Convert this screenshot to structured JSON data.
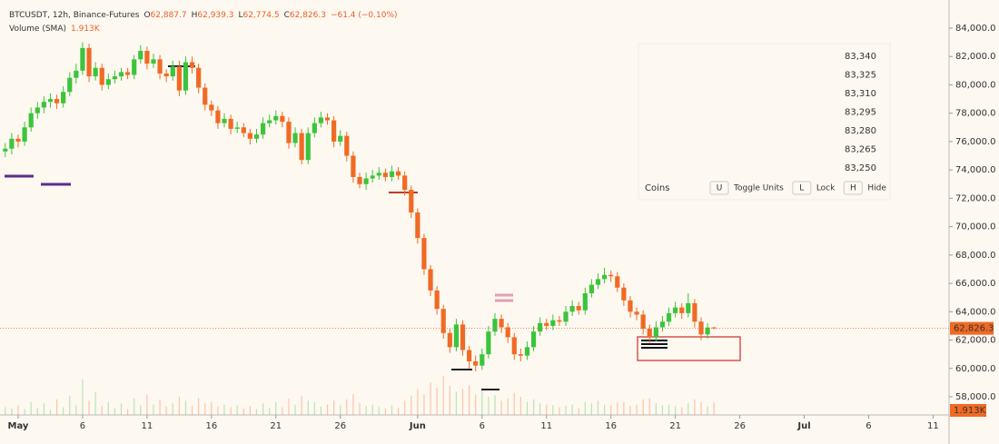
{
  "chart_data": {
    "type": "candlestick",
    "symbol": "BTCUSDT, 12h, Binance-Futures",
    "quote": [
      {
        "letter": "O",
        "text": "62,887.7"
      },
      {
        "letter": "H",
        "text": "62,939.3"
      },
      {
        "letter": "L",
        "text": "62,774.5"
      },
      {
        "letter": "C",
        "text": "62,826.3"
      }
    ],
    "change": "−61.4 (−0.10%)",
    "volume_title": "Volume (SMA)",
    "volume_value": "1.913K",
    "last_price_label": "62,826.3",
    "up_color": "#3cc43c",
    "down_color": "#f06a24",
    "xlim": [
      -1.41,
      72.24
    ],
    "xticks": [
      {
        "value": 0,
        "label": "May"
      },
      {
        "value": 5,
        "label": "6"
      },
      {
        "value": 10,
        "label": "11"
      },
      {
        "value": 15,
        "label": "16"
      },
      {
        "value": 20,
        "label": "21"
      },
      {
        "value": 25,
        "label": "26"
      },
      {
        "value": 31,
        "label": "Jun"
      },
      {
        "value": 36,
        "label": "6"
      },
      {
        "value": 41,
        "label": "11"
      },
      {
        "value": 46,
        "label": "16"
      },
      {
        "value": 51,
        "label": "21"
      },
      {
        "value": 56,
        "label": "26"
      },
      {
        "value": 61,
        "label": "Jul"
      },
      {
        "value": 66,
        "label": "6"
      },
      {
        "value": 71,
        "label": "11"
      }
    ],
    "ylim": [
      56720,
      85985
    ],
    "yticks": [
      {
        "value": 58000,
        "label": "58,000.0"
      },
      {
        "value": 60000,
        "label": "60,000.0"
      },
      {
        "value": 62000,
        "label": "62,000.0"
      },
      {
        "value": 64000,
        "label": "64,000.0"
      },
      {
        "value": 66000,
        "label": "66,000.0"
      },
      {
        "value": 68000,
        "label": "68,000.0"
      },
      {
        "value": 70000,
        "label": "70,000.0"
      },
      {
        "value": 72000,
        "label": "72,000.0"
      },
      {
        "value": 74000,
        "label": "74,000.0"
      },
      {
        "value": 76000,
        "label": "76,000.0"
      },
      {
        "value": 78000,
        "label": "78,000.0"
      },
      {
        "value": 80000,
        "label": "80,000.0"
      },
      {
        "value": 82000,
        "label": "82,000.0"
      },
      {
        "value": 84000,
        "label": "84,000.0"
      }
    ],
    "vlim": [
      0,
      8
    ],
    "x": [
      -1,
      -0.5,
      0,
      0.5,
      1,
      1.5,
      2,
      2.5,
      3,
      3.5,
      4,
      4.5,
      5,
      5.5,
      6,
      6.5,
      7,
      7.5,
      8,
      8.5,
      9,
      9.5,
      10,
      10.5,
      11,
      11.5,
      12,
      12.5,
      13,
      13.5,
      14,
      14.5,
      15,
      15.5,
      16,
      16.5,
      17,
      17.5,
      18,
      18.5,
      19,
      19.5,
      20,
      20.5,
      21,
      21.5,
      22,
      22.5,
      23,
      23.5,
      24,
      24.5,
      25,
      25.5,
      26,
      26.5,
      27,
      27.5,
      28,
      28.5,
      29,
      29.5,
      30,
      30.5,
      31,
      31.5,
      32,
      32.5,
      33,
      33.5,
      34,
      34.5,
      35,
      35.5,
      36,
      36.5,
      37,
      37.5,
      38,
      38.5,
      39,
      39.5,
      40,
      40.5,
      41,
      41.5,
      42,
      42.5,
      43,
      43.5,
      44,
      44.5,
      45,
      45.5,
      46,
      46.5,
      47,
      47.5,
      48,
      48.5,
      49,
      49.5,
      50,
      50.5,
      51,
      51.5,
      52,
      52.5,
      53,
      53.5,
      54
    ],
    "open": [
      75300,
      75500,
      76200,
      76000,
      77000,
      78000,
      78400,
      78800,
      79000,
      78700,
      79500,
      80500,
      81000,
      82600,
      80600,
      81200,
      80000,
      80400,
      80600,
      80900,
      80700,
      81800,
      82400,
      81500,
      81800,
      80800,
      80600,
      81300,
      79600,
      81600,
      81200,
      79800,
      78600,
      78200,
      77300,
      77600,
      76900,
      77000,
      76600,
      76200,
      76500,
      77300,
      77500,
      77800,
      77400,
      75900,
      76600,
      74700,
      76600,
      77300,
      77700,
      77500,
      76000,
      76400,
      75000,
      73500,
      73000,
      73400,
      73600,
      73800,
      73500,
      73900,
      73600,
      72600,
      71000,
      69200,
      67000,
      65500,
      64200,
      62500,
      61500,
      63100,
      61300,
      60500,
      60200,
      61000,
      62600,
      63500,
      62900,
      62200,
      61000,
      60900,
      61500,
      62600,
      63200,
      63000,
      63400,
      63300,
      64000,
      64400,
      64100,
      65300,
      65900,
      66300,
      66600,
      66500,
      65700,
      64800,
      64000,
      63800,
      62800,
      62200,
      62900,
      63300,
      63900,
      64300,
      63900,
      64600,
      63300,
      62400,
      62887.7
    ],
    "high": [
      75900,
      76600,
      76500,
      77400,
      78400,
      78800,
      79200,
      79400,
      79300,
      79900,
      80900,
      81500,
      83000,
      82900,
      81600,
      81500,
      80800,
      81000,
      81200,
      81200,
      82100,
      82800,
      82700,
      82200,
      82100,
      81100,
      81700,
      81700,
      82000,
      82000,
      81500,
      80100,
      78900,
      78500,
      78000,
      77900,
      77400,
      77300,
      76900,
      76900,
      77700,
      77900,
      78200,
      78100,
      77700,
      77000,
      76900,
      77000,
      77700,
      78100,
      78000,
      77800,
      76800,
      76700,
      75300,
      73800,
      73800,
      74000,
      74200,
      74100,
      74300,
      74200,
      73900,
      72900,
      71300,
      69500,
      67300,
      65800,
      64500,
      62800,
      63500,
      63400,
      61600,
      60900,
      61400,
      63000,
      63900,
      63800,
      63200,
      62500,
      61400,
      61900,
      63000,
      63600,
      63500,
      63800,
      63700,
      64400,
      64800,
      64700,
      65700,
      66300,
      66700,
      67100,
      66900,
      66800,
      66000,
      65100,
      64300,
      64100,
      63100,
      63300,
      63700,
      64300,
      64700,
      64600,
      65300,
      64900,
      63600,
      63200,
      62939.3
    ],
    "low": [
      74900,
      75100,
      75600,
      75700,
      76700,
      77600,
      78000,
      78400,
      78300,
      78400,
      79200,
      80100,
      80700,
      80200,
      80300,
      79600,
      79700,
      80100,
      80300,
      80400,
      80400,
      81500,
      81100,
      81200,
      80400,
      80200,
      80300,
      79200,
      79300,
      80800,
      79400,
      78200,
      77800,
      76900,
      77000,
      76500,
      76600,
      76300,
      75800,
      75900,
      76200,
      77000,
      77200,
      77000,
      75500,
      75600,
      74400,
      74400,
      76300,
      77000,
      77200,
      75600,
      75700,
      74600,
      73100,
      72700,
      72600,
      73100,
      73300,
      73200,
      73200,
      73300,
      72200,
      70600,
      68800,
      66600,
      65100,
      63800,
      62100,
      61100,
      61200,
      60900,
      60000,
      59800,
      59900,
      60700,
      62300,
      62500,
      61800,
      60600,
      60500,
      60600,
      61200,
      62300,
      62700,
      62700,
      63000,
      63000,
      63700,
      63800,
      63800,
      65000,
      65600,
      66000,
      66100,
      65400,
      64400,
      63600,
      63400,
      62400,
      61800,
      61900,
      62600,
      63000,
      63600,
      63500,
      63600,
      62900,
      62000,
      62100,
      62774.5
    ],
    "close": [
      75500,
      76200,
      76000,
      77000,
      78000,
      78400,
      78800,
      79000,
      78700,
      79500,
      80500,
      81000,
      82600,
      80600,
      81200,
      80000,
      80400,
      80600,
      80900,
      80700,
      81800,
      82400,
      81500,
      81800,
      80800,
      80600,
      81300,
      79600,
      81600,
      81200,
      79800,
      78600,
      78200,
      77300,
      77600,
      76900,
      77000,
      76600,
      76200,
      76500,
      77300,
      77500,
      77800,
      77400,
      75900,
      76600,
      74700,
      76600,
      77300,
      77700,
      77500,
      76000,
      76400,
      75000,
      73500,
      73000,
      73400,
      73600,
      73800,
      73500,
      73900,
      73600,
      72600,
      71000,
      69200,
      67000,
      65500,
      64200,
      62500,
      61500,
      63100,
      61300,
      60500,
      60200,
      61000,
      62600,
      63500,
      62900,
      62200,
      61000,
      60900,
      61500,
      62600,
      63200,
      63000,
      63400,
      63300,
      64000,
      64400,
      64100,
      65300,
      65900,
      66300,
      66600,
      66500,
      65700,
      64800,
      64000,
      63800,
      62800,
      62200,
      62900,
      63300,
      63900,
      64300,
      63900,
      64600,
      63300,
      62400,
      62887.7,
      62826.3
    ],
    "volume": [
      1.2,
      1.0,
      1.5,
      0.9,
      2.0,
      1.1,
      1.8,
      0.8,
      2.4,
      1.2,
      3.0,
      1.5,
      5.5,
      2.2,
      3.5,
      1.4,
      2.0,
      1.0,
      1.8,
      0.9,
      2.6,
      1.5,
      3.2,
      1.6,
      2.4,
      1.3,
      1.8,
      2.8,
      2.2,
      1.4,
      2.6,
      1.8,
      2.0,
      1.3,
      1.6,
      1.2,
      1.5,
      1.0,
      1.4,
      0.9,
      1.8,
      1.1,
      2.0,
      1.2,
      2.5,
      1.6,
      3.0,
      2.2,
      2.0,
      1.3,
      1.6,
      2.2,
      1.5,
      2.4,
      3.2,
      1.8,
      1.4,
      1.6,
      1.2,
      1.0,
      1.5,
      1.1,
      2.2,
      3.0,
      4.0,
      3.2,
      5.0,
      4.2,
      6.0,
      4.5,
      3.6,
      4.0,
      4.6,
      3.2,
      3.8,
      2.8,
      3.0,
      2.2,
      2.6,
      3.4,
      2.8,
      2.0,
      2.4,
      1.8,
      1.6,
      1.5,
      1.2,
      1.4,
      1.6,
      1.1,
      2.0,
      1.8,
      2.2,
      1.6,
      1.5,
      1.9,
      2.0,
      1.4,
      1.6,
      2.4,
      2.6,
      1.8,
      1.5,
      1.6,
      1.4,
      1.2,
      1.8,
      2.4,
      2.0,
      1.3,
      1.913
    ]
  },
  "panel": {
    "levels": [
      "83,340",
      "83,325",
      "83,310",
      "83,295",
      "83,280",
      "83,265",
      "83,250"
    ],
    "units": "Coins",
    "buttons": [
      {
        "key": "U",
        "label": "Toggle Units"
      },
      {
        "key": "L",
        "label": "Lock"
      },
      {
        "key": "H",
        "label": "Hide"
      }
    ]
  }
}
